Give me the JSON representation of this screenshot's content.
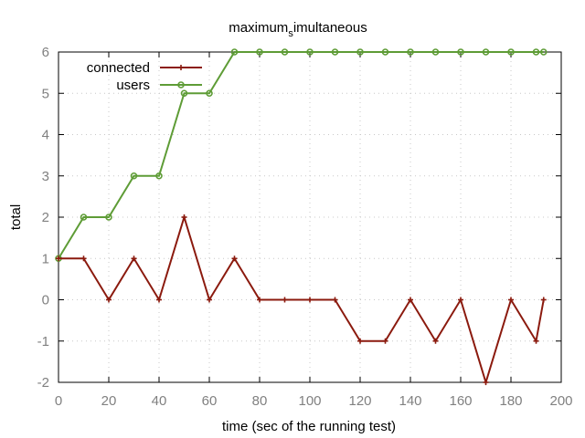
{
  "chart_data": {
    "type": "line",
    "title": {
      "main": "maximum",
      "sub": "s",
      "rest": "imultaneous"
    },
    "xlabel": "time (sec of the running test)",
    "ylabel": "total",
    "xlim": [
      0,
      200
    ],
    "ylim": [
      -2,
      6
    ],
    "xticks": [
      0,
      20,
      40,
      60,
      80,
      100,
      120,
      140,
      160,
      180,
      200
    ],
    "yticks": [
      -2,
      -1,
      0,
      1,
      2,
      3,
      4,
      5,
      6
    ],
    "grid": true,
    "legend_position": "top-left",
    "series": [
      {
        "name": "connected",
        "color": "#8b1a0e",
        "marker": "plus",
        "x": [
          0,
          10,
          20,
          30,
          40,
          50,
          60,
          70,
          80,
          90,
          100,
          110,
          120,
          130,
          140,
          150,
          160,
          170,
          180,
          190,
          193
        ],
        "y": [
          1,
          1,
          0,
          1,
          0,
          2,
          0,
          1,
          0,
          0,
          0,
          0,
          -1,
          -1,
          0,
          -1,
          0,
          -2,
          0,
          -1,
          0
        ]
      },
      {
        "name": "users",
        "color": "#5e9c36",
        "marker": "circle",
        "x": [
          0,
          10,
          20,
          30,
          40,
          50,
          60,
          70,
          80,
          90,
          100,
          110,
          120,
          130,
          140,
          150,
          160,
          170,
          180,
          190,
          193
        ],
        "y": [
          1,
          2,
          2,
          3,
          3,
          5,
          5,
          6,
          6,
          6,
          6,
          6,
          6,
          6,
          6,
          6,
          6,
          6,
          6,
          6,
          6
        ]
      }
    ]
  }
}
